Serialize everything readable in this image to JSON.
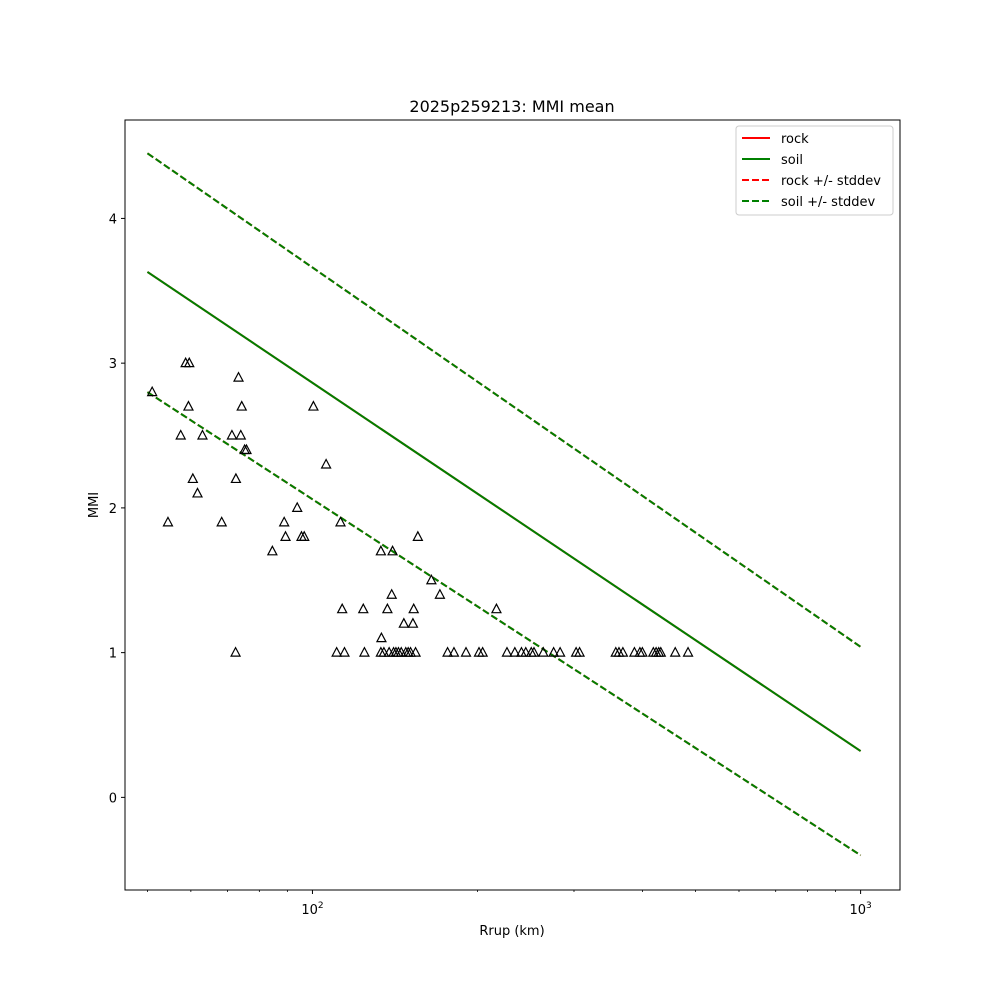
{
  "chart_data": {
    "type": "scatter",
    "title": "2025p259213: MMI mean",
    "xlabel": "Rrup (km)",
    "ylabel": "MMI",
    "xscale": "log",
    "xlim": [
      45.5,
      1180
    ],
    "ylim": [
      -0.64,
      4.68
    ],
    "xticks": [
      {
        "value": 100,
        "base": "10",
        "exp": "2"
      },
      {
        "value": 1000,
        "base": "10",
        "exp": "3"
      }
    ],
    "yticks": [
      {
        "value": 0,
        "label": "0"
      },
      {
        "value": 1,
        "label": "1"
      },
      {
        "value": 2,
        "label": "2"
      },
      {
        "value": 3,
        "label": "3"
      },
      {
        "value": 4,
        "label": "4"
      }
    ],
    "grid": false,
    "legend_position": "top-right",
    "series": [
      {
        "name": "rock",
        "style": "solid",
        "color": "#ff0000",
        "x": [
          50,
          1000
        ],
        "y": [
          3.63,
          0.32
        ]
      },
      {
        "name": "soil",
        "style": "solid",
        "color": "#008000",
        "x": [
          50,
          1000
        ],
        "y": [
          3.63,
          0.32
        ]
      },
      {
        "name": "rock +/- stddev",
        "style": "dashed",
        "color": "#ff0000",
        "x": [
          50,
          1000
        ],
        "y": [
          4.45,
          1.04
        ],
        "y2": [
          2.8,
          -0.4
        ]
      },
      {
        "name": "soil +/- stddev",
        "style": "dashed",
        "color": "#008000",
        "x": [
          50,
          1000
        ],
        "y": [
          4.45,
          1.04
        ],
        "y2": [
          2.8,
          -0.4
        ]
      }
    ],
    "observations": {
      "marker": "triangle",
      "color": "#000000",
      "points": [
        [
          51,
          2.8
        ],
        [
          54.5,
          1.9
        ],
        [
          57.5,
          2.5
        ],
        [
          58.7,
          3.0
        ],
        [
          59.6,
          3.0
        ],
        [
          59.4,
          2.7
        ],
        [
          60.5,
          2.2
        ],
        [
          61.7,
          2.1
        ],
        [
          63.0,
          2.5
        ],
        [
          68.3,
          1.9
        ],
        [
          71.3,
          2.5
        ],
        [
          72.5,
          2.2
        ],
        [
          73.3,
          2.9
        ],
        [
          74.0,
          2.5
        ],
        [
          74.3,
          2.7
        ],
        [
          75.2,
          2.4
        ],
        [
          75.8,
          2.4
        ],
        [
          72.4,
          1.0
        ],
        [
          84.5,
          1.7
        ],
        [
          88.8,
          1.9
        ],
        [
          89.3,
          1.8
        ],
        [
          93.8,
          2.0
        ],
        [
          95.5,
          1.8
        ],
        [
          96.6,
          1.8
        ],
        [
          100.4,
          2.7
        ],
        [
          105.9,
          2.3
        ],
        [
          110.7,
          1.0
        ],
        [
          112.5,
          1.9
        ],
        [
          113.3,
          1.3
        ],
        [
          114.4,
          1.0
        ],
        [
          123.8,
          1.3
        ],
        [
          124.4,
          1.0
        ],
        [
          133.3,
          1.7
        ],
        [
          133.6,
          1.1
        ],
        [
          133.3,
          1.0
        ],
        [
          135.0,
          1.0
        ],
        [
          137.0,
          1.3
        ],
        [
          138.0,
          1.0
        ],
        [
          139.5,
          1.4
        ],
        [
          140.0,
          1.7
        ],
        [
          140.6,
          1.0
        ],
        [
          142.0,
          1.0
        ],
        [
          143.5,
          1.0
        ],
        [
          145.2,
          1.0
        ],
        [
          146.8,
          1.2
        ],
        [
          148.0,
          1.0
        ],
        [
          149.5,
          1.0
        ],
        [
          151.0,
          1.0
        ],
        [
          152.5,
          1.2
        ],
        [
          153.0,
          1.3
        ],
        [
          154.2,
          1.0
        ],
        [
          155.7,
          1.8
        ],
        [
          164.8,
          1.5
        ],
        [
          170.8,
          1.4
        ],
        [
          176.4,
          1.0
        ],
        [
          181.2,
          1.0
        ],
        [
          190.6,
          1.0
        ],
        [
          201.3,
          1.0
        ],
        [
          204.4,
          1.0
        ],
        [
          216.6,
          1.3
        ],
        [
          226.4,
          1.0
        ],
        [
          234.0,
          1.0
        ],
        [
          240.6,
          1.0
        ],
        [
          245.0,
          1.0
        ],
        [
          250.7,
          1.0
        ],
        [
          253.6,
          1.0
        ],
        [
          263.7,
          1.0
        ],
        [
          275.4,
          1.0
        ],
        [
          283.0,
          1.0
        ],
        [
          302.7,
          1.0
        ],
        [
          307.1,
          1.0
        ],
        [
          357.6,
          1.0
        ],
        [
          362.4,
          1.0
        ],
        [
          368.4,
          1.0
        ],
        [
          386.7,
          1.0
        ],
        [
          395.7,
          1.0
        ],
        [
          399.8,
          1.0
        ],
        [
          418.7,
          1.0
        ],
        [
          423.6,
          1.0
        ],
        [
          428.3,
          1.0
        ],
        [
          432.0,
          1.0
        ],
        [
          459.0,
          1.0
        ],
        [
          484.4,
          1.0
        ]
      ]
    }
  }
}
